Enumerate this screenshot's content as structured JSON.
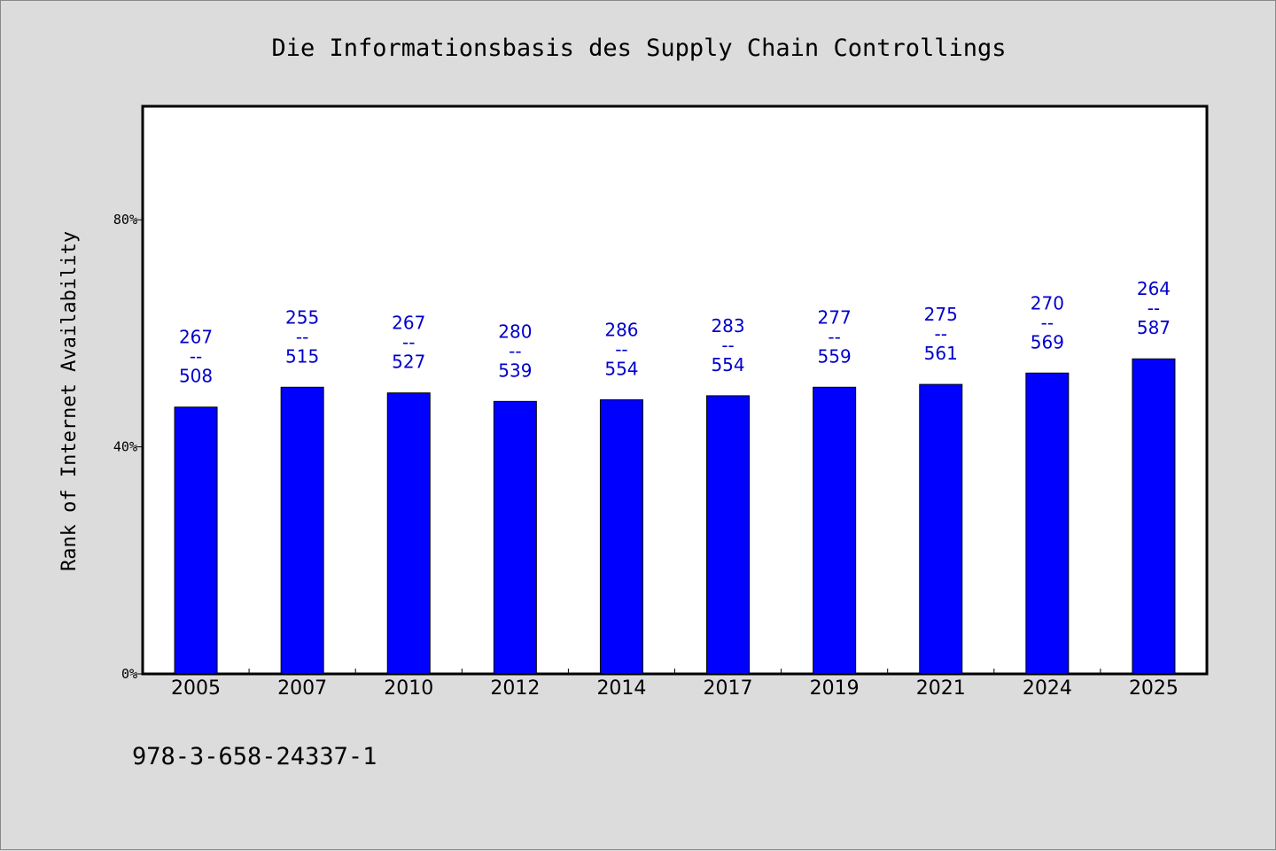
{
  "chart_data": {
    "type": "bar",
    "title": "Die Informationsbasis des Supply Chain Controllings",
    "ylabel": "Rank of Internet Availability",
    "xlabel": "",
    "categories": [
      "2005",
      "2007",
      "2010",
      "2012",
      "2014",
      "2017",
      "2019",
      "2021",
      "2024",
      "2025"
    ],
    "values": [
      47,
      50.5,
      49.5,
      48,
      48.3,
      49,
      50.5,
      51,
      53,
      55.5
    ],
    "data_labels": [
      {
        "top": "267",
        "sep": "--",
        "bottom": "508"
      },
      {
        "top": "255",
        "sep": "--",
        "bottom": "515"
      },
      {
        "top": "267",
        "sep": "--",
        "bottom": "527"
      },
      {
        "top": "280",
        "sep": "--",
        "bottom": "539"
      },
      {
        "top": "286",
        "sep": "--",
        "bottom": "554"
      },
      {
        "top": "283",
        "sep": "--",
        "bottom": "554"
      },
      {
        "top": "277",
        "sep": "--",
        "bottom": "559"
      },
      {
        "top": "275",
        "sep": "--",
        "bottom": "561"
      },
      {
        "top": "270",
        "sep": "--",
        "bottom": "569"
      },
      {
        "top": "264",
        "sep": "--",
        "bottom": "587"
      }
    ],
    "y_ticks": [
      0,
      40,
      80
    ],
    "y_tick_labels": [
      "0%",
      "40%",
      "80%"
    ],
    "ylim": [
      0,
      100
    ],
    "grid": false,
    "colors": {
      "bar": "#0000ff",
      "label": "#0000cc",
      "background": "#dcdcdc",
      "plot_background": "#ffffff"
    }
  },
  "footnote": "978-3-658-24337-1"
}
